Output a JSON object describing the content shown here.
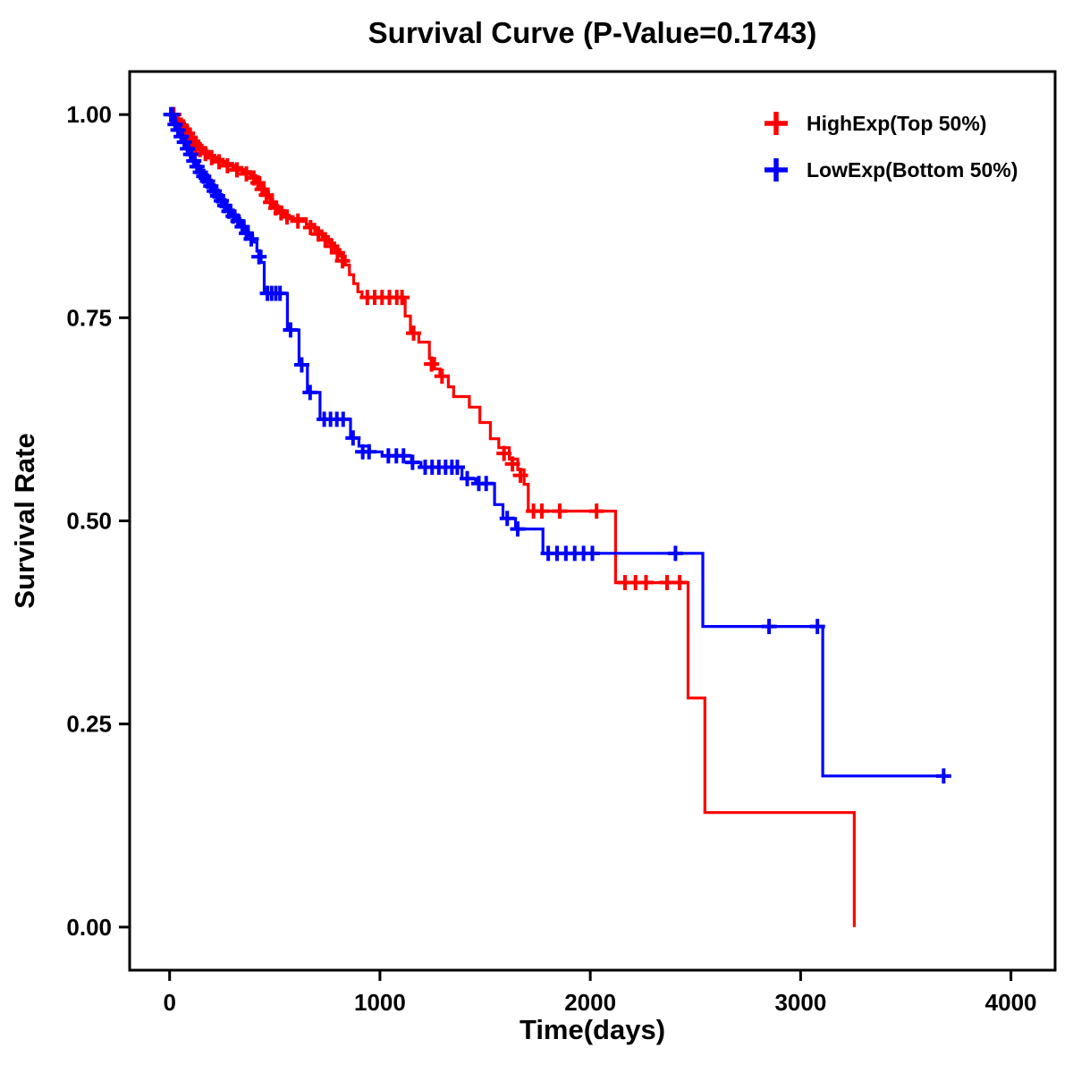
{
  "page": {
    "background": "#FFFFFF"
  },
  "chart_data": {
    "type": "line",
    "subtype": "kaplan-meier-step-survival",
    "title": "Survival Curve (P-Value=0.1743)",
    "p_value": 0.1743,
    "xlabel": "Time(days)",
    "ylabel": "Survival Rate",
    "xlim": [
      0,
      4000
    ],
    "ylim": [
      0.0,
      1.0
    ],
    "grid": false,
    "legend_position": "top-right-inside",
    "xticks": [
      {
        "v": 0,
        "label": "0"
      },
      {
        "v": 1000,
        "label": "1000"
      },
      {
        "v": 2000,
        "label": "2000"
      },
      {
        "v": 3000,
        "label": "3000"
      },
      {
        "v": 4000,
        "label": "4000"
      }
    ],
    "yticks": [
      {
        "v": 0.0,
        "label": "0.00"
      },
      {
        "v": 0.25,
        "label": "0.25"
      },
      {
        "v": 0.5,
        "label": "0.50"
      },
      {
        "v": 0.75,
        "label": "0.75"
      },
      {
        "v": 1.0,
        "label": "1.00"
      }
    ],
    "series": [
      {
        "name": "HighExp(Top 50%)",
        "color": "#FF0000",
        "steps": [
          [
            0,
            1.0
          ],
          [
            25,
            0.995
          ],
          [
            45,
            0.99
          ],
          [
            60,
            0.985
          ],
          [
            75,
            0.98
          ],
          [
            90,
            0.975
          ],
          [
            100,
            0.97
          ],
          [
            115,
            0.965
          ],
          [
            130,
            0.96
          ],
          [
            155,
            0.955
          ],
          [
            185,
            0.95
          ],
          [
            215,
            0.945
          ],
          [
            255,
            0.94
          ],
          [
            300,
            0.935
          ],
          [
            345,
            0.93
          ],
          [
            385,
            0.925
          ],
          [
            410,
            0.92
          ],
          [
            430,
            0.912
          ],
          [
            450,
            0.905
          ],
          [
            470,
            0.897
          ],
          [
            490,
            0.888
          ],
          [
            515,
            0.882
          ],
          [
            545,
            0.876
          ],
          [
            570,
            0.872
          ],
          [
            650,
            0.865
          ],
          [
            690,
            0.857
          ],
          [
            725,
            0.85
          ],
          [
            755,
            0.842
          ],
          [
            785,
            0.834
          ],
          [
            810,
            0.826
          ],
          [
            835,
            0.815
          ],
          [
            855,
            0.803
          ],
          [
            875,
            0.792
          ],
          [
            895,
            0.782
          ],
          [
            915,
            0.775
          ],
          [
            1120,
            0.752
          ],
          [
            1145,
            0.731
          ],
          [
            1185,
            0.72
          ],
          [
            1235,
            0.7
          ],
          [
            1260,
            0.687
          ],
          [
            1285,
            0.678
          ],
          [
            1325,
            0.665
          ],
          [
            1350,
            0.653
          ],
          [
            1425,
            0.64
          ],
          [
            1475,
            0.621
          ],
          [
            1525,
            0.601
          ],
          [
            1565,
            0.59
          ],
          [
            1615,
            0.576
          ],
          [
            1655,
            0.563
          ],
          [
            1685,
            0.545
          ],
          [
            1705,
            0.512
          ],
          [
            2120,
            0.424
          ],
          [
            2465,
            0.282
          ],
          [
            2545,
            0.141
          ],
          [
            3255,
            0.0
          ]
        ],
        "censor_marks": [
          [
            20,
            1.0
          ],
          [
            38,
            0.992
          ],
          [
            55,
            0.987
          ],
          [
            70,
            0.982
          ],
          [
            85,
            0.977
          ],
          [
            98,
            0.972
          ],
          [
            110,
            0.967
          ],
          [
            125,
            0.962
          ],
          [
            145,
            0.957
          ],
          [
            170,
            0.952
          ],
          [
            200,
            0.947
          ],
          [
            235,
            0.942
          ],
          [
            275,
            0.937
          ],
          [
            320,
            0.932
          ],
          [
            365,
            0.927
          ],
          [
            400,
            0.922
          ],
          [
            420,
            0.916
          ],
          [
            440,
            0.908
          ],
          [
            460,
            0.901
          ],
          [
            480,
            0.892
          ],
          [
            505,
            0.885
          ],
          [
            530,
            0.879
          ],
          [
            558,
            0.874
          ],
          [
            610,
            0.869
          ],
          [
            670,
            0.861
          ],
          [
            707,
            0.853
          ],
          [
            740,
            0.846
          ],
          [
            770,
            0.838
          ],
          [
            798,
            0.83
          ],
          [
            822,
            0.82
          ],
          [
            940,
            0.775
          ],
          [
            975,
            0.775
          ],
          [
            1010,
            0.775
          ],
          [
            1045,
            0.775
          ],
          [
            1080,
            0.775
          ],
          [
            1105,
            0.775
          ],
          [
            1160,
            0.731
          ],
          [
            1245,
            0.693
          ],
          [
            1295,
            0.678
          ],
          [
            1590,
            0.583
          ],
          [
            1630,
            0.57
          ],
          [
            1668,
            0.556
          ],
          [
            1730,
            0.512
          ],
          [
            1770,
            0.512
          ],
          [
            1855,
            0.512
          ],
          [
            2030,
            0.512
          ],
          [
            2165,
            0.424
          ],
          [
            2215,
            0.424
          ],
          [
            2265,
            0.424
          ],
          [
            2365,
            0.424
          ],
          [
            2425,
            0.424
          ]
        ]
      },
      {
        "name": "LowExp(Bottom 50%)",
        "color": "#0000FF",
        "steps": [
          [
            0,
            1.0
          ],
          [
            18,
            0.992
          ],
          [
            32,
            0.985
          ],
          [
            48,
            0.977
          ],
          [
            62,
            0.97
          ],
          [
            78,
            0.962
          ],
          [
            92,
            0.955
          ],
          [
            108,
            0.947
          ],
          [
            122,
            0.94
          ],
          [
            138,
            0.932
          ],
          [
            152,
            0.927
          ],
          [
            170,
            0.921
          ],
          [
            188,
            0.915
          ],
          [
            205,
            0.909
          ],
          [
            222,
            0.903
          ],
          [
            238,
            0.897
          ],
          [
            255,
            0.891
          ],
          [
            272,
            0.885
          ],
          [
            292,
            0.878
          ],
          [
            312,
            0.872
          ],
          [
            335,
            0.866
          ],
          [
            355,
            0.858
          ],
          [
            375,
            0.851
          ],
          [
            395,
            0.843
          ],
          [
            415,
            0.832
          ],
          [
            435,
            0.818
          ],
          [
            450,
            0.78
          ],
          [
            560,
            0.735
          ],
          [
            615,
            0.692
          ],
          [
            655,
            0.658
          ],
          [
            715,
            0.625
          ],
          [
            860,
            0.602
          ],
          [
            900,
            0.592
          ],
          [
            950,
            0.585
          ],
          [
            1010,
            0.58
          ],
          [
            1150,
            0.572
          ],
          [
            1195,
            0.566
          ],
          [
            1390,
            0.552
          ],
          [
            1455,
            0.546
          ],
          [
            1545,
            0.52
          ],
          [
            1585,
            0.503
          ],
          [
            1645,
            0.49
          ],
          [
            1775,
            0.46
          ],
          [
            2535,
            0.37
          ],
          [
            3105,
            0.186
          ],
          [
            3700,
            0.186
          ]
        ],
        "censor_marks": [
          [
            6,
            1.0
          ],
          [
            14,
            1.0
          ],
          [
            26,
            0.988
          ],
          [
            40,
            0.981
          ],
          [
            55,
            0.973
          ],
          [
            70,
            0.966
          ],
          [
            85,
            0.958
          ],
          [
            100,
            0.951
          ],
          [
            115,
            0.943
          ],
          [
            130,
            0.936
          ],
          [
            146,
            0.929
          ],
          [
            162,
            0.924
          ],
          [
            180,
            0.918
          ],
          [
            196,
            0.912
          ],
          [
            212,
            0.906
          ],
          [
            228,
            0.9
          ],
          [
            246,
            0.894
          ],
          [
            262,
            0.888
          ],
          [
            282,
            0.881
          ],
          [
            302,
            0.875
          ],
          [
            325,
            0.869
          ],
          [
            345,
            0.862
          ],
          [
            365,
            0.854
          ],
          [
            388,
            0.847
          ],
          [
            425,
            0.825
          ],
          [
            465,
            0.78
          ],
          [
            485,
            0.78
          ],
          [
            505,
            0.78
          ],
          [
            525,
            0.78
          ],
          [
            575,
            0.735
          ],
          [
            628,
            0.692
          ],
          [
            668,
            0.658
          ],
          [
            735,
            0.625
          ],
          [
            765,
            0.625
          ],
          [
            795,
            0.625
          ],
          [
            825,
            0.625
          ],
          [
            872,
            0.602
          ],
          [
            918,
            0.585
          ],
          [
            948,
            0.585
          ],
          [
            1040,
            0.58
          ],
          [
            1078,
            0.58
          ],
          [
            1112,
            0.58
          ],
          [
            1155,
            0.572
          ],
          [
            1215,
            0.566
          ],
          [
            1248,
            0.566
          ],
          [
            1280,
            0.566
          ],
          [
            1312,
            0.566
          ],
          [
            1342,
            0.566
          ],
          [
            1368,
            0.566
          ],
          [
            1415,
            0.552
          ],
          [
            1470,
            0.546
          ],
          [
            1505,
            0.546
          ],
          [
            1605,
            0.503
          ],
          [
            1655,
            0.49
          ],
          [
            1800,
            0.46
          ],
          [
            1842,
            0.46
          ],
          [
            1884,
            0.46
          ],
          [
            1926,
            0.46
          ],
          [
            1968,
            0.46
          ],
          [
            2010,
            0.46
          ],
          [
            2405,
            0.46
          ],
          [
            2850,
            0.37
          ],
          [
            3080,
            0.37
          ],
          [
            3680,
            0.186
          ]
        ]
      }
    ]
  }
}
